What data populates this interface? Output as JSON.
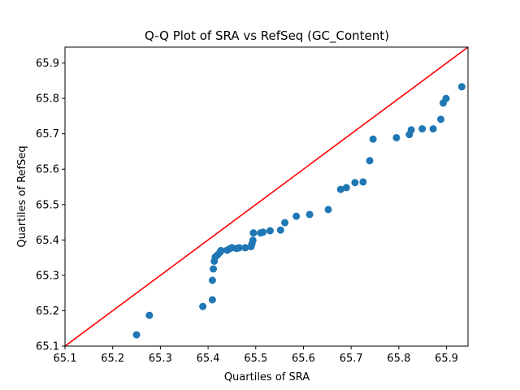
{
  "chart_data": {
    "type": "scatter",
    "title": "Q-Q Plot of SRA vs RefSeq (GC_Content)",
    "xlabel": "Quartiles of SRA",
    "ylabel": "Quartiles of RefSeq",
    "xlim": [
      65.1,
      65.945
    ],
    "ylim": [
      65.1,
      65.945
    ],
    "xticks": [
      "65.1",
      "65.2",
      "65.3",
      "65.4",
      "65.5",
      "65.6",
      "65.7",
      "65.8",
      "65.9"
    ],
    "yticks": [
      "65.1",
      "65.2",
      "65.3",
      "65.4",
      "65.5",
      "65.6",
      "65.7",
      "65.8",
      "65.9"
    ],
    "grid": false,
    "colors": {
      "points": "#1f77b4",
      "reference_line": "#ff0000"
    },
    "reference_line": {
      "from": [
        65.1,
        65.1
      ],
      "to": [
        65.945,
        65.945
      ]
    },
    "points": [
      [
        65.25,
        65.132
      ],
      [
        65.277,
        65.187
      ],
      [
        65.389,
        65.212
      ],
      [
        65.409,
        65.231
      ],
      [
        65.409,
        65.286
      ],
      [
        65.411,
        65.318
      ],
      [
        65.413,
        65.34
      ],
      [
        65.415,
        65.352
      ],
      [
        65.42,
        65.358
      ],
      [
        65.425,
        65.365
      ],
      [
        65.427,
        65.37
      ],
      [
        65.44,
        65.371
      ],
      [
        65.445,
        65.375
      ],
      [
        65.45,
        65.378
      ],
      [
        65.46,
        65.376
      ],
      [
        65.465,
        65.378
      ],
      [
        65.478,
        65.378
      ],
      [
        65.49,
        65.381
      ],
      [
        65.492,
        65.389
      ],
      [
        65.494,
        65.399
      ],
      [
        65.495,
        65.42
      ],
      [
        65.51,
        65.42
      ],
      [
        65.515,
        65.422
      ],
      [
        65.53,
        65.426
      ],
      [
        65.552,
        65.428
      ],
      [
        65.561,
        65.449
      ],
      [
        65.585,
        65.467
      ],
      [
        65.613,
        65.472
      ],
      [
        65.652,
        65.486
      ],
      [
        65.678,
        65.543
      ],
      [
        65.69,
        65.548
      ],
      [
        65.708,
        65.562
      ],
      [
        65.725,
        65.564
      ],
      [
        65.739,
        65.624
      ],
      [
        65.746,
        65.685
      ],
      [
        65.795,
        65.689
      ],
      [
        65.822,
        65.698
      ],
      [
        65.826,
        65.711
      ],
      [
        65.849,
        65.714
      ],
      [
        65.872,
        65.714
      ],
      [
        65.888,
        65.741
      ],
      [
        65.893,
        65.787
      ],
      [
        65.899,
        65.8
      ],
      [
        65.932,
        65.833
      ]
    ]
  }
}
